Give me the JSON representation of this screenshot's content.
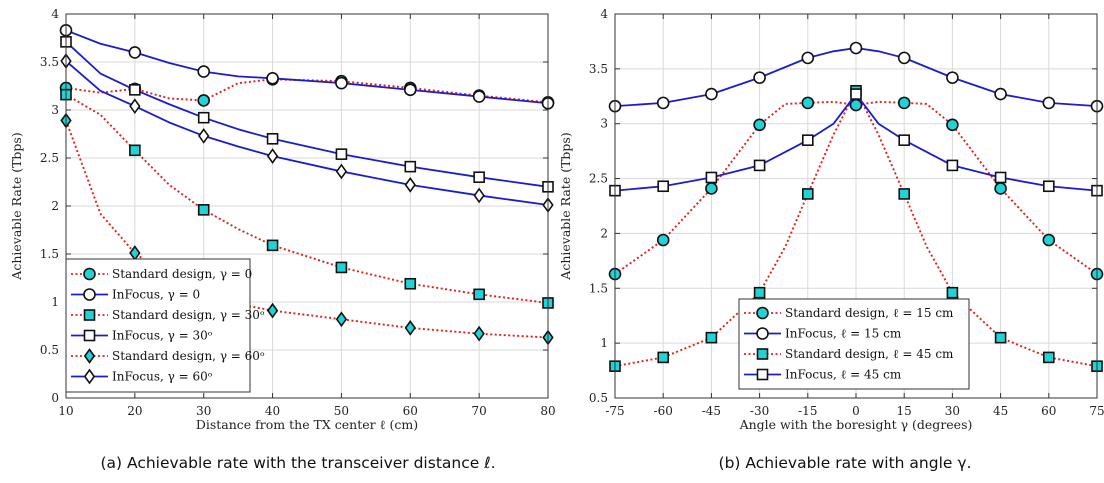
{
  "chart_data": [
    {
      "type": "line",
      "caption": "(a) Achievable rate with the transceiver distance ℓ.",
      "xlabel": "Distance from the TX center ℓ (cm)",
      "ylabel": "Achievable Rate (Tbps)",
      "xlim": [
        10,
        80
      ],
      "ylim": [
        0,
        4
      ],
      "xticks": [
        10,
        20,
        30,
        40,
        50,
        60,
        70,
        80
      ],
      "yticks": [
        0,
        0.5,
        1,
        1.5,
        2,
        2.5,
        3,
        3.5,
        4
      ],
      "ytick_labels": [
        "0",
        "0.5",
        "1",
        "1.5",
        "2",
        "2.5",
        "3",
        "3.5",
        "4"
      ],
      "grid": true,
      "legend_position": "bottom-left",
      "series": [
        {
          "name": "Standard design, γ = 0",
          "style": "dotted",
          "color": "#e0201b",
          "marker": "circle",
          "marker_fill": "#22d3d6",
          "x": [
            10,
            15,
            20,
            25,
            30,
            35,
            40,
            50,
            60,
            70,
            80
          ],
          "y": [
            3.23,
            3.18,
            3.22,
            3.12,
            3.1,
            3.28,
            3.32,
            3.3,
            3.23,
            3.15,
            3.08
          ],
          "marker_x": [
            10,
            20,
            30,
            40,
            50,
            60,
            70,
            80
          ]
        },
        {
          "name": "InFocus, γ = 0",
          "style": "solid",
          "color": "#1c1ccf",
          "marker": "circle",
          "marker_fill": "#ffffff",
          "x": [
            10,
            15,
            20,
            25,
            30,
            35,
            40,
            50,
            60,
            70,
            80
          ],
          "y": [
            3.83,
            3.69,
            3.6,
            3.49,
            3.4,
            3.35,
            3.33,
            3.28,
            3.21,
            3.14,
            3.07
          ],
          "marker_x": [
            10,
            20,
            30,
            40,
            50,
            60,
            70,
            80
          ]
        },
        {
          "name": "Standard design, γ = 30ᵒ",
          "style": "dotted",
          "color": "#e0201b",
          "marker": "square",
          "marker_fill": "#22d3d6",
          "x": [
            10,
            15,
            20,
            25,
            30,
            35,
            40,
            50,
            60,
            70,
            80
          ],
          "y": [
            3.16,
            2.95,
            2.58,
            2.22,
            1.96,
            1.76,
            1.59,
            1.36,
            1.19,
            1.08,
            0.99
          ],
          "marker_x": [
            10,
            20,
            30,
            40,
            50,
            60,
            70,
            80
          ]
        },
        {
          "name": "InFocus, γ = 30ᵒ",
          "style": "solid",
          "color": "#1c1ccf",
          "marker": "square",
          "marker_fill": "#ffffff",
          "x": [
            10,
            15,
            20,
            25,
            30,
            35,
            40,
            50,
            60,
            70,
            80
          ],
          "y": [
            3.71,
            3.38,
            3.21,
            3.06,
            2.92,
            2.8,
            2.7,
            2.54,
            2.41,
            2.3,
            2.2
          ],
          "marker_x": [
            10,
            20,
            30,
            40,
            50,
            60,
            70,
            80
          ]
        },
        {
          "name": "Standard design, γ = 60ᵒ",
          "style": "dotted",
          "color": "#e0201b",
          "marker": "diamond",
          "marker_fill": "#22d3d6",
          "x": [
            10,
            15,
            20,
            25,
            30,
            35,
            40,
            50,
            60,
            70,
            80
          ],
          "y": [
            2.89,
            1.92,
            1.51,
            1.25,
            1.08,
            0.98,
            0.91,
            0.82,
            0.73,
            0.67,
            0.63
          ],
          "marker_x": [
            10,
            20,
            30,
            40,
            50,
            60,
            70,
            80
          ]
        },
        {
          "name": "InFocus, γ = 60ᵒ",
          "style": "solid",
          "color": "#1c1ccf",
          "marker": "diamond",
          "marker_fill": "#ffffff",
          "x": [
            10,
            15,
            20,
            25,
            30,
            35,
            40,
            50,
            60,
            70,
            80
          ],
          "y": [
            3.51,
            3.2,
            3.04,
            2.87,
            2.73,
            2.62,
            2.52,
            2.36,
            2.22,
            2.11,
            2.01
          ],
          "marker_x": [
            10,
            20,
            30,
            40,
            50,
            60,
            70,
            80
          ]
        }
      ]
    },
    {
      "type": "line",
      "caption": "(b) Achievable rate with angle γ.",
      "xlabel": "Angle with the boresight γ (degrees)",
      "ylabel": "Achievable Rate (Tbps)",
      "xlim": [
        -75,
        75
      ],
      "ylim": [
        0.5,
        4
      ],
      "xticks": [
        -75,
        -60,
        -45,
        -30,
        -15,
        0,
        15,
        30,
        45,
        60,
        75
      ],
      "yticks": [
        0.5,
        1,
        1.5,
        2,
        2.5,
        3,
        3.5,
        4
      ],
      "ytick_labels": [
        "0.5",
        "1",
        "1.5",
        "2",
        "2.5",
        "3",
        "3.5",
        "4"
      ],
      "grid": true,
      "legend_position": "bottom-center",
      "series": [
        {
          "name": "Standard design, ℓ = 15 cm",
          "style": "dotted",
          "color": "#e0201b",
          "marker": "circle",
          "marker_fill": "#22d3d6",
          "x": [
            -75,
            -60,
            -45,
            -30,
            -22,
            -15,
            -7,
            0,
            7,
            15,
            22,
            30,
            45,
            60,
            75
          ],
          "y": [
            1.63,
            1.94,
            2.41,
            2.99,
            3.18,
            3.19,
            3.2,
            3.17,
            3.2,
            3.19,
            3.18,
            2.99,
            2.41,
            1.94,
            1.63
          ],
          "marker_x": [
            -75,
            -60,
            -45,
            -30,
            -15,
            0,
            15,
            30,
            45,
            60,
            75
          ]
        },
        {
          "name": "InFocus, ℓ = 15 cm",
          "style": "solid",
          "color": "#1c1ccf",
          "marker": "circle",
          "marker_fill": "#ffffff",
          "x": [
            -75,
            -60,
            -45,
            -30,
            -15,
            -7,
            0,
            7,
            15,
            30,
            45,
            60,
            75
          ],
          "y": [
            3.16,
            3.19,
            3.27,
            3.42,
            3.6,
            3.66,
            3.69,
            3.66,
            3.6,
            3.42,
            3.27,
            3.19,
            3.16
          ],
          "marker_x": [
            -75,
            -60,
            -45,
            -30,
            -15,
            0,
            15,
            30,
            45,
            60,
            75
          ]
        },
        {
          "name": "Standard design, ℓ = 45 cm",
          "style": "dotted",
          "color": "#e0201b",
          "marker": "square",
          "marker_fill": "#22d3d6",
          "x": [
            -75,
            -60,
            -45,
            -30,
            -22,
            -15,
            -7,
            0,
            7,
            15,
            22,
            30,
            45,
            60,
            75
          ],
          "y": [
            0.79,
            0.87,
            1.05,
            1.46,
            1.88,
            2.36,
            2.9,
            3.3,
            2.9,
            2.36,
            1.88,
            1.46,
            1.05,
            0.87,
            0.79
          ],
          "marker_x": [
            -75,
            -60,
            -45,
            -30,
            -15,
            0,
            15,
            30,
            45,
            60,
            75
          ]
        },
        {
          "name": "InFocus, ℓ = 45 cm",
          "style": "solid",
          "color": "#1c1ccf",
          "marker": "square",
          "marker_fill": "#ffffff",
          "x": [
            -75,
            -60,
            -45,
            -30,
            -15,
            -7,
            0,
            7,
            15,
            30,
            45,
            60,
            75
          ],
          "y": [
            2.39,
            2.43,
            2.51,
            2.62,
            2.85,
            3.0,
            3.27,
            3.0,
            2.85,
            2.62,
            2.51,
            2.43,
            2.39
          ],
          "marker_x": [
            -75,
            -60,
            -45,
            -30,
            -15,
            0,
            15,
            30,
            45,
            60,
            75
          ]
        }
      ]
    }
  ]
}
